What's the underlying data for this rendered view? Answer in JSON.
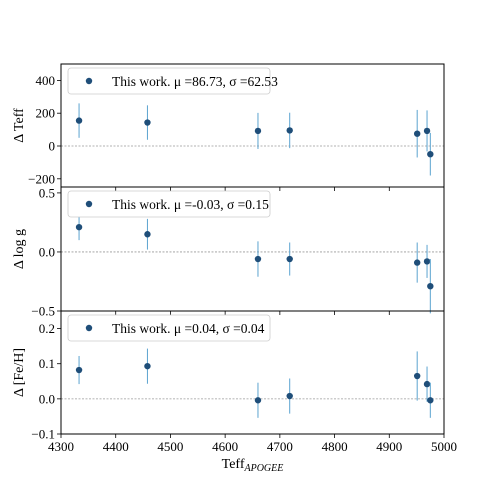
{
  "colors": {
    "marker": "#1f4e79",
    "errorbar": "#5ba3d0",
    "zero_line": "#999999",
    "frame": "#000000"
  },
  "chart_data": [
    {
      "type": "scatter",
      "ylabel": "Δ Teff",
      "ylim": [
        -250,
        500
      ],
      "yticks": [
        -200,
        0,
        200,
        400
      ],
      "ytick_labels": [
        "−200",
        "0",
        "200",
        "400"
      ],
      "zero_line": true,
      "legend": {
        "placement": "top-left",
        "text": "This work. μ =86.73, σ =62.53"
      },
      "x": [
        4333,
        4458,
        4660,
        4718,
        4951,
        4969,
        4975
      ],
      "y": [
        155,
        143,
        92,
        95,
        75,
        92,
        -50
      ],
      "yerr": [
        105,
        105,
        110,
        108,
        145,
        125,
        130
      ]
    },
    {
      "type": "scatter",
      "ylabel": "Δ log g",
      "ylim": [
        -0.5,
        0.55
      ],
      "yticks": [
        -0.5,
        0.0,
        0.5
      ],
      "ytick_labels": [
        "−0.5",
        "0.0",
        "0.5"
      ],
      "zero_line": true,
      "legend": {
        "placement": "top-left",
        "text": "This work. μ =-0.03, σ =0.15"
      },
      "x": [
        4333,
        4458,
        4660,
        4718,
        4951,
        4969,
        4975
      ],
      "y": [
        0.21,
        0.15,
        -0.06,
        -0.06,
        -0.09,
        -0.08,
        -0.29
      ],
      "yerr": [
        0.11,
        0.13,
        0.15,
        0.14,
        0.17,
        0.14,
        0.23
      ]
    },
    {
      "type": "scatter",
      "ylabel": "Δ [Fe/H]",
      "xlabel": "Teff",
      "xlabel_sub": "APOGEE",
      "ylim": [
        -0.1,
        0.25
      ],
      "yticks": [
        -0.1,
        0.0,
        0.1,
        0.2
      ],
      "ytick_labels": [
        "−0.1",
        "0.0",
        "0.1",
        "0.2"
      ],
      "zero_line": true,
      "legend": {
        "placement": "top-left",
        "text": "This work. μ =0.04, σ =0.04"
      },
      "x": [
        4333,
        4458,
        4660,
        4718,
        4951,
        4969,
        4975
      ],
      "y": [
        0.082,
        0.093,
        -0.004,
        0.008,
        0.065,
        0.042,
        -0.004
      ],
      "yerr": [
        0.04,
        0.05,
        0.05,
        0.05,
        0.07,
        0.05,
        0.05
      ]
    }
  ],
  "x_axis": {
    "xlim": [
      4300,
      5000
    ],
    "xticks": [
      4300,
      4400,
      4500,
      4600,
      4700,
      4800,
      4900,
      5000
    ],
    "xtick_labels": [
      "4300",
      "4400",
      "4500",
      "4600",
      "4700",
      "4800",
      "4900",
      "5000"
    ]
  }
}
